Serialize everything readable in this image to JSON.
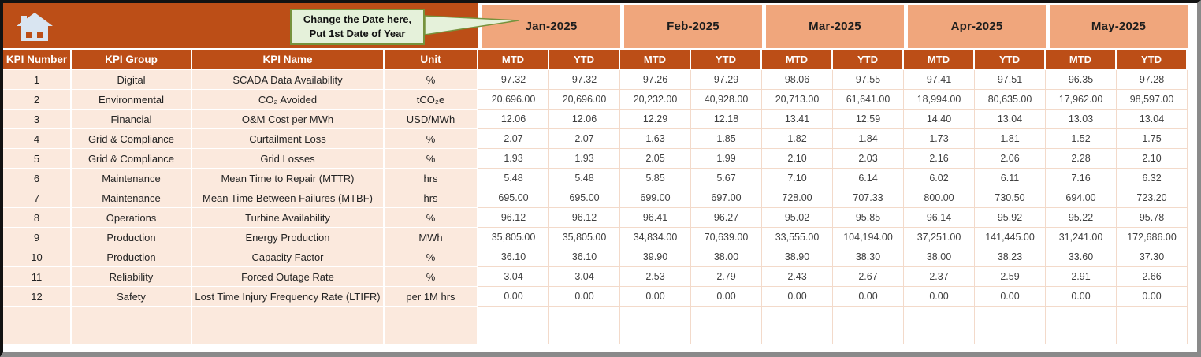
{
  "colors": {
    "header_orange": "#BC4E17",
    "month_peach": "#F0A67C",
    "row_peach": "#FBE9DD",
    "cell_border": "#F3DACA",
    "callout_bg": "#E5F1DA",
    "callout_border": "#76923C"
  },
  "callout": {
    "line1": "Change the Date here,",
    "line2": "Put 1st Date of Year"
  },
  "table": {
    "column_headers": [
      "KPI Number",
      "KPI Group",
      "KPI Name",
      "Unit"
    ],
    "months": [
      "Jan-2025",
      "Feb-2025",
      "Mar-2025",
      "Apr-2025",
      "May-2025"
    ],
    "sub_headers": [
      "MTD",
      "YTD"
    ],
    "rows": [
      {
        "kpi_number": "1",
        "kpi_group": "Digital",
        "kpi_name": "SCADA Data Availability",
        "unit": "%",
        "values": [
          "97.32",
          "97.32",
          "97.26",
          "97.29",
          "98.06",
          "97.55",
          "97.41",
          "97.51",
          "96.35",
          "97.28"
        ]
      },
      {
        "kpi_number": "2",
        "kpi_group": "Environmental",
        "kpi_name": "CO₂ Avoided",
        "unit": "tCO₂e",
        "values": [
          "20,696.00",
          "20,696.00",
          "20,232.00",
          "40,928.00",
          "20,713.00",
          "61,641.00",
          "18,994.00",
          "80,635.00",
          "17,962.00",
          "98,597.00"
        ]
      },
      {
        "kpi_number": "3",
        "kpi_group": "Financial",
        "kpi_name": "O&M Cost per MWh",
        "unit": "USD/MWh",
        "values": [
          "12.06",
          "12.06",
          "12.29",
          "12.18",
          "13.41",
          "12.59",
          "14.40",
          "13.04",
          "13.03",
          "13.04"
        ]
      },
      {
        "kpi_number": "4",
        "kpi_group": "Grid & Compliance",
        "kpi_name": "Curtailment Loss",
        "unit": "%",
        "values": [
          "2.07",
          "2.07",
          "1.63",
          "1.85",
          "1.82",
          "1.84",
          "1.73",
          "1.81",
          "1.52",
          "1.75"
        ]
      },
      {
        "kpi_number": "5",
        "kpi_group": "Grid & Compliance",
        "kpi_name": "Grid Losses",
        "unit": "%",
        "values": [
          "1.93",
          "1.93",
          "2.05",
          "1.99",
          "2.10",
          "2.03",
          "2.16",
          "2.06",
          "2.28",
          "2.10"
        ]
      },
      {
        "kpi_number": "6",
        "kpi_group": "Maintenance",
        "kpi_name": "Mean Time to Repair (MTTR)",
        "unit": "hrs",
        "values": [
          "5.48",
          "5.48",
          "5.85",
          "5.67",
          "7.10",
          "6.14",
          "6.02",
          "6.11",
          "7.16",
          "6.32"
        ]
      },
      {
        "kpi_number": "7",
        "kpi_group": "Maintenance",
        "kpi_name": "Mean Time Between Failures (MTBF)",
        "unit": "hrs",
        "values": [
          "695.00",
          "695.00",
          "699.00",
          "697.00",
          "728.00",
          "707.33",
          "800.00",
          "730.50",
          "694.00",
          "723.20"
        ]
      },
      {
        "kpi_number": "8",
        "kpi_group": "Operations",
        "kpi_name": "Turbine Availability",
        "unit": "%",
        "values": [
          "96.12",
          "96.12",
          "96.41",
          "96.27",
          "95.02",
          "95.85",
          "96.14",
          "95.92",
          "95.22",
          "95.78"
        ]
      },
      {
        "kpi_number": "9",
        "kpi_group": "Production",
        "kpi_name": "Energy Production",
        "unit": "MWh",
        "values": [
          "35,805.00",
          "35,805.00",
          "34,834.00",
          "70,639.00",
          "33,555.00",
          "104,194.00",
          "37,251.00",
          "141,445.00",
          "31,241.00",
          "172,686.00"
        ]
      },
      {
        "kpi_number": "10",
        "kpi_group": "Production",
        "kpi_name": "Capacity Factor",
        "unit": "%",
        "values": [
          "36.10",
          "36.10",
          "39.90",
          "38.00",
          "38.90",
          "38.30",
          "38.00",
          "38.23",
          "33.60",
          "37.30"
        ]
      },
      {
        "kpi_number": "11",
        "kpi_group": "Reliability",
        "kpi_name": "Forced Outage Rate",
        "unit": "%",
        "values": [
          "3.04",
          "3.04",
          "2.53",
          "2.79",
          "2.43",
          "2.67",
          "2.37",
          "2.59",
          "2.91",
          "2.66"
        ]
      },
      {
        "kpi_number": "12",
        "kpi_group": "Safety",
        "kpi_name": "Lost Time Injury Frequency Rate (LTIFR)",
        "unit": "per 1M hrs",
        "values": [
          "0.00",
          "0.00",
          "0.00",
          "0.00",
          "0.00",
          "0.00",
          "0.00",
          "0.00",
          "0.00",
          "0.00"
        ]
      }
    ],
    "empty_row_count": 2
  }
}
